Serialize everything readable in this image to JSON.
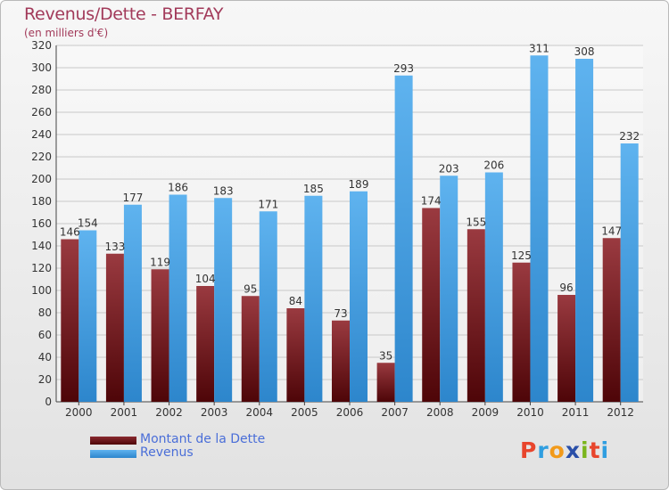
{
  "title": "Revenus/Dette - BERFAY",
  "subtitle": "(en milliers d'€)",
  "logo": {
    "text": "Proxiti",
    "letter_colors": [
      "#e8452c",
      "#2f9ee0",
      "#f29a1a",
      "#2a4fa8",
      "#7ab51d",
      "#e8452c",
      "#2f9ee0"
    ]
  },
  "legend": {
    "items": [
      {
        "label": "Montant de la Dette",
        "color": "#6b0f14"
      },
      {
        "label": "Revenus",
        "color": "#4aa3e6"
      }
    ]
  },
  "chart_data": {
    "type": "bar",
    "title": "Revenus/Dette - BERFAY",
    "subtitle": "(en milliers d'€)",
    "categories": [
      "2000",
      "2001",
      "2002",
      "2003",
      "2004",
      "2005",
      "2006",
      "2007",
      "2008",
      "2009",
      "2010",
      "2011",
      "2012"
    ],
    "series": [
      {
        "name": "Montant de la Dette",
        "color": "#6b0f14",
        "values": [
          146,
          133,
          119,
          104,
          95,
          84,
          73,
          35,
          174,
          155,
          125,
          96,
          147
        ]
      },
      {
        "name": "Revenus",
        "color": "#4aa3e6",
        "values": [
          154,
          177,
          186,
          183,
          171,
          185,
          189,
          293,
          203,
          206,
          311,
          308,
          232
        ]
      }
    ],
    "ylim": [
      0,
      320
    ],
    "yticks": [
      0,
      20,
      40,
      60,
      80,
      100,
      120,
      140,
      160,
      180,
      200,
      220,
      240,
      260,
      280,
      300,
      320
    ],
    "grid": true,
    "legend_position": "bottom-left"
  }
}
